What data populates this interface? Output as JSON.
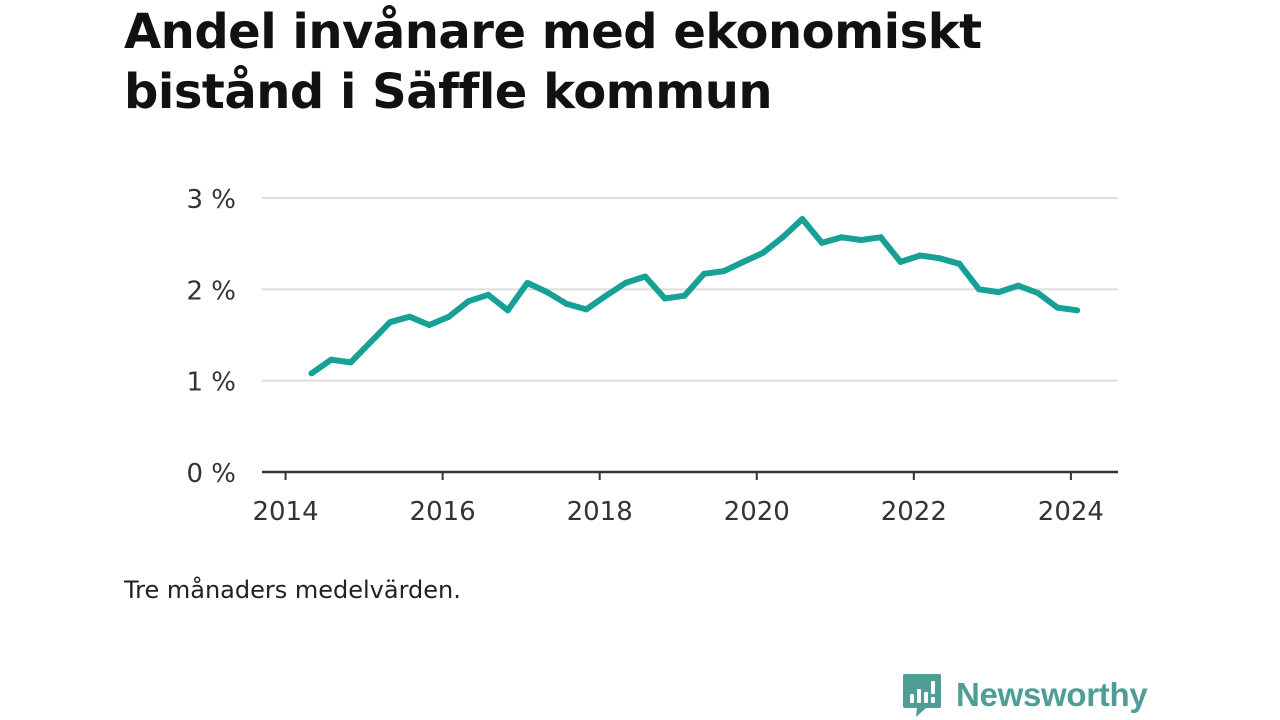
{
  "title": "Andel invånare med ekonomiskt bistånd i Säffle kommun",
  "note": "Tre månaders medelvärden.",
  "brand": {
    "name": "Newsworthy",
    "icon": "newsworthy-logo-icon",
    "color": "#4e9e97"
  },
  "colors": {
    "line": "#17a096",
    "grid": "#dddddd",
    "axis": "#333333",
    "text": "#333333"
  },
  "chart_data": {
    "type": "line",
    "title": "Andel invånare med ekonomiskt bistånd i Säffle kommun",
    "xlabel": "",
    "ylabel": "",
    "xlim": [
      2013.7,
      2024.6
    ],
    "ylim": [
      0,
      3
    ],
    "x_ticks": [
      2014,
      2016,
      2018,
      2020,
      2022,
      2024
    ],
    "x_tick_labels": [
      "2014",
      "2016",
      "2018",
      "2020",
      "2022",
      "2024"
    ],
    "y_ticks": [
      0,
      1,
      2,
      3
    ],
    "y_tick_labels": [
      "0 %",
      "1 %",
      "2 %",
      "3 %"
    ],
    "grid": true,
    "series": [
      {
        "name": "",
        "x": [
          2014.33,
          2014.58,
          2014.83,
          2015.08,
          2015.33,
          2015.58,
          2015.83,
          2016.08,
          2016.33,
          2016.58,
          2016.83,
          2017.08,
          2017.33,
          2017.58,
          2017.83,
          2018.08,
          2018.33,
          2018.58,
          2018.83,
          2019.08,
          2019.33,
          2019.58,
          2019.83,
          2020.08,
          2020.33,
          2020.58,
          2020.83,
          2021.08,
          2021.33,
          2021.58,
          2021.83,
          2022.08,
          2022.33,
          2022.58,
          2022.83,
          2023.08,
          2023.33,
          2023.58,
          2023.83,
          2024.08
        ],
        "values": [
          1.08,
          1.23,
          1.2,
          1.42,
          1.64,
          1.7,
          1.61,
          1.7,
          1.87,
          1.94,
          1.77,
          2.07,
          1.97,
          1.84,
          1.78,
          1.93,
          2.07,
          2.14,
          1.9,
          1.93,
          2.17,
          2.2,
          2.3,
          2.4,
          2.57,
          2.77,
          2.51,
          2.57,
          2.54,
          2.57,
          2.3,
          2.37,
          2.34,
          2.28,
          2.0,
          1.97,
          2.04,
          1.96,
          1.8,
          1.77
        ]
      }
    ]
  }
}
